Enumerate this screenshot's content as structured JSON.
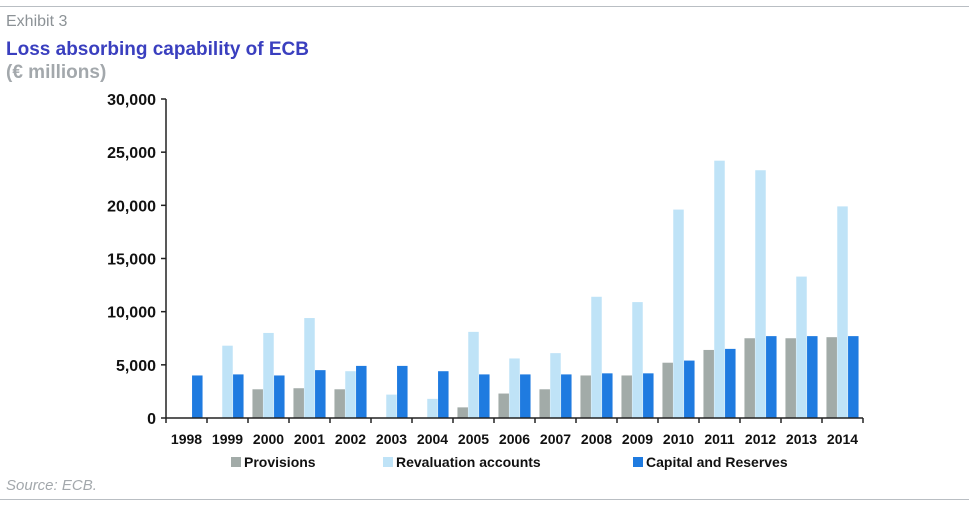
{
  "header": {
    "exhibit": "Exhibit 3",
    "title": "Loss absorbing capability of ECB",
    "subtitle": "(€ millions)"
  },
  "footer": {
    "source": "Source: ECB."
  },
  "chart_data": {
    "type": "bar",
    "categories": [
      "1998",
      "1999",
      "2000",
      "2001",
      "2002",
      "2003",
      "2004",
      "2005",
      "2006",
      "2007",
      "2008",
      "2009",
      "2010",
      "2011",
      "2012",
      "2013",
      "2014"
    ],
    "series": [
      {
        "name": "Provisions",
        "color": "#a2aba8",
        "values": [
          0,
          0,
          2700,
          2800,
          2700,
          0,
          0,
          1000,
          2300,
          2700,
          4000,
          4000,
          5200,
          6400,
          7500,
          7500,
          7600
        ]
      },
      {
        "name": "Revaluation accounts",
        "color": "#bfe3f7",
        "values": [
          0,
          6800,
          8000,
          9400,
          4400,
          2200,
          1800,
          8100,
          5600,
          6100,
          11400,
          10900,
          19600,
          24200,
          23300,
          13300,
          19900
        ]
      },
      {
        "name": "Capital and Reserves",
        "color": "#1f7be0",
        "values": [
          4000,
          4100,
          4000,
          4500,
          4900,
          4900,
          4400,
          4100,
          4100,
          4100,
          4200,
          4200,
          5400,
          6500,
          7700,
          7700,
          7700
        ]
      }
    ],
    "ylim": [
      0,
      30000
    ],
    "yticks": [
      0,
      5000,
      10000,
      15000,
      20000,
      25000,
      30000
    ],
    "ytick_labels": [
      "0",
      "5,000",
      "10,000",
      "15,000",
      "20,000",
      "25,000",
      "30,000"
    ],
    "legend_position": "bottom",
    "grid": false
  }
}
